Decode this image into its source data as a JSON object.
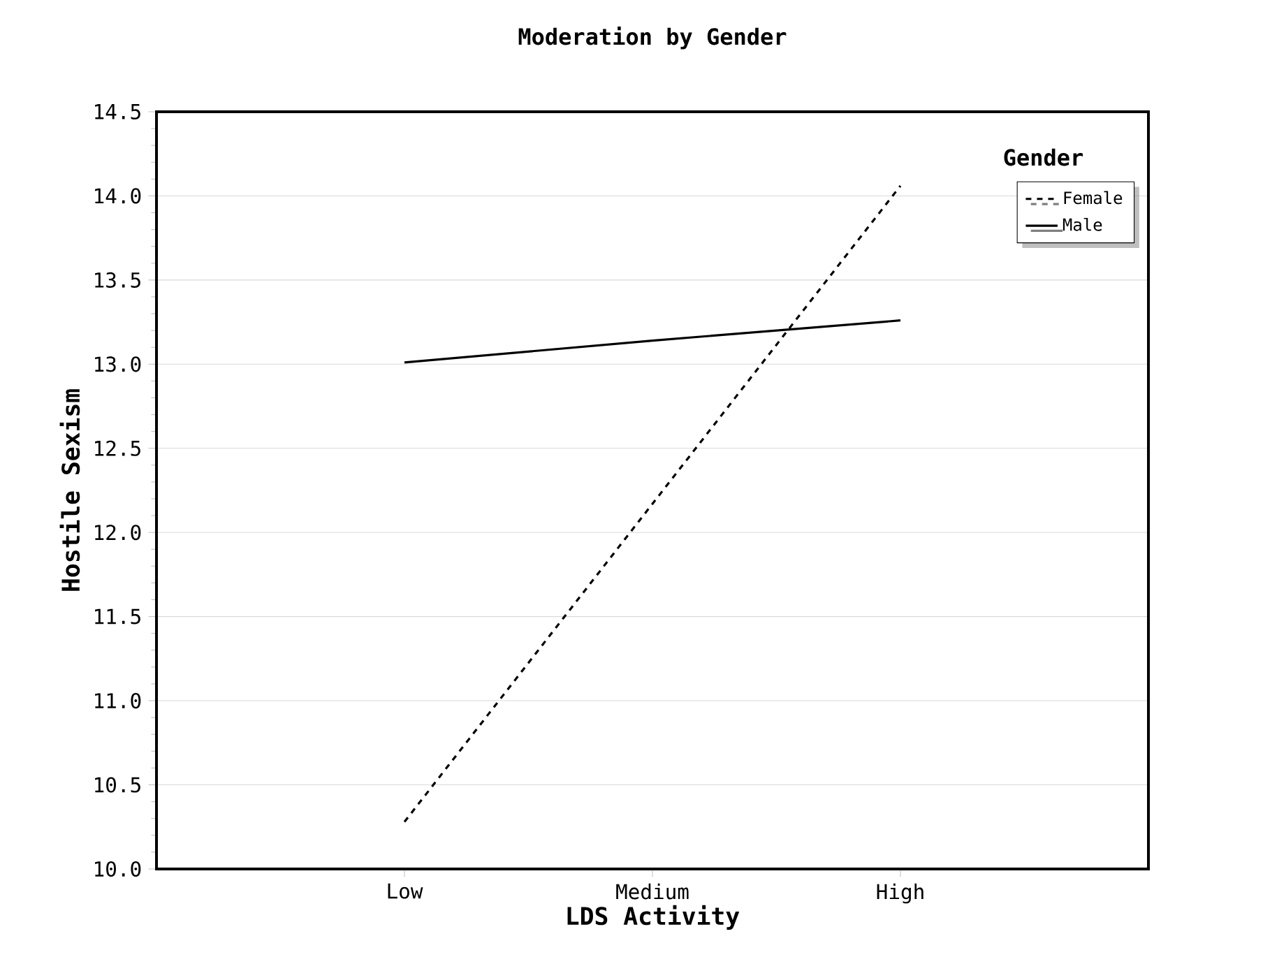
{
  "chart_data": {
    "type": "line",
    "title": "Moderation by Gender",
    "xlabel": "LDS Activity",
    "ylabel": "Hostile Sexism",
    "legend_title": "Gender",
    "categories": [
      "Low",
      "Medium",
      "High"
    ],
    "series": [
      {
        "name": "Female",
        "color": "#000000",
        "line_style": "dashed",
        "values": [
          10.28,
          12.17,
          14.06
        ]
      },
      {
        "name": "Male",
        "color": "#000000",
        "line_style": "solid",
        "values": [
          13.01,
          13.14,
          13.26
        ]
      }
    ],
    "ylim": [
      10,
      14.5
    ],
    "yticks": [
      {
        "value": 10,
        "label": "10.0"
      },
      {
        "value": 10.5,
        "label": "10.5"
      },
      {
        "value": 11,
        "label": "11.0"
      },
      {
        "value": 11.5,
        "label": "11.5"
      },
      {
        "value": 12,
        "label": "12.0"
      },
      {
        "value": 12.5,
        "label": "12.5"
      },
      {
        "value": 13,
        "label": "13.0"
      },
      {
        "value": 13.5,
        "label": "13.5"
      },
      {
        "value": 14,
        "label": "14.0"
      },
      {
        "value": 14.5,
        "label": "14.5"
      }
    ],
    "grid": "y",
    "legend": "top right",
    "marker": "none"
  }
}
